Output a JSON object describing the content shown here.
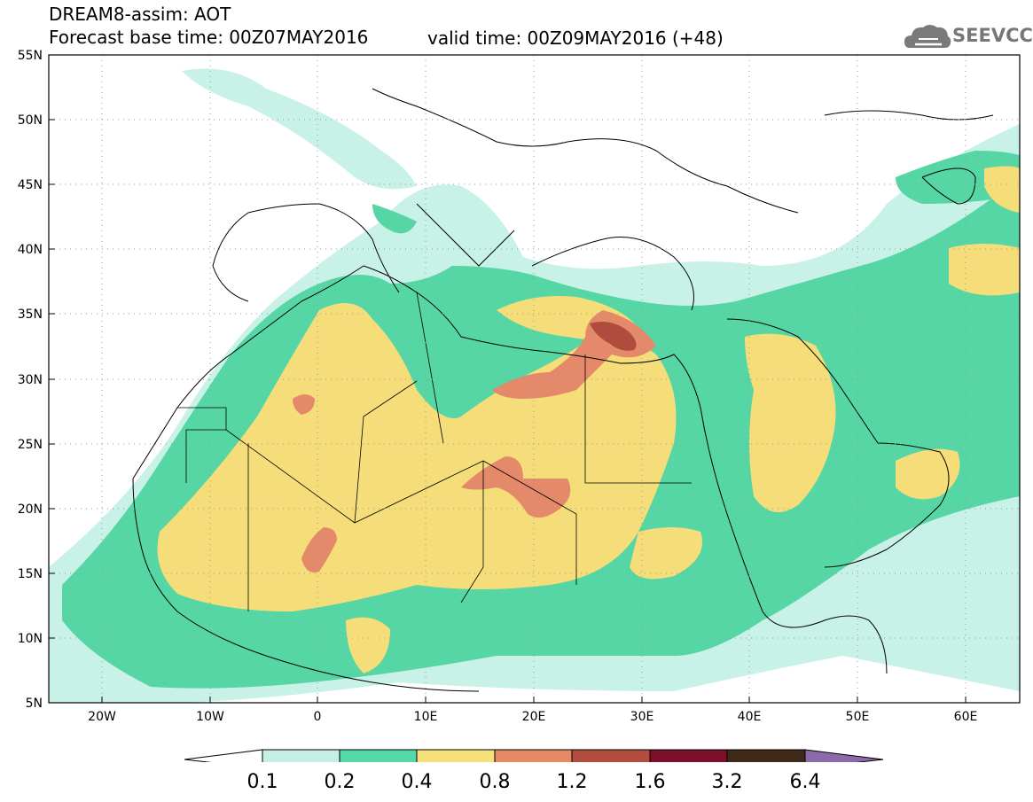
{
  "header": {
    "title": "DREAM8-assim: AOT",
    "base_time": "Forecast base time: 00Z07MAY2016",
    "valid_time": "valid time: 00Z09MAY2016 (+48)"
  },
  "logo": {
    "text": "SEEVCCC",
    "icon": "cloud-icon"
  },
  "axes": {
    "lat_labels": [
      "55N",
      "50N",
      "45N",
      "40N",
      "35N",
      "30N",
      "25N",
      "20N",
      "15N",
      "10N",
      "5N"
    ],
    "lat_values": [
      55,
      50,
      45,
      40,
      35,
      30,
      25,
      20,
      15,
      10,
      5
    ],
    "lon_labels": [
      "20W",
      "10W",
      "0",
      "10E",
      "20E",
      "30E",
      "40E",
      "50E",
      "60E"
    ],
    "lon_values": [
      -20,
      -10,
      0,
      10,
      20,
      30,
      40,
      50,
      60
    ],
    "lon_range": [
      -25,
      65
    ],
    "lat_range": [
      5,
      55
    ],
    "grid": "dotted"
  },
  "colorbar": {
    "labels": [
      "0.1",
      "0.2",
      "0.4",
      "0.8",
      "1.2",
      "1.6",
      "3.2",
      "6.4"
    ],
    "colors": [
      "#ffffff",
      "#c6f0e6",
      "#55d8a8",
      "#f6e07a",
      "#e58a65",
      "#b24d3f",
      "#7e0f2a",
      "#3f2a1a",
      "#8a6aa8"
    ]
  }
}
